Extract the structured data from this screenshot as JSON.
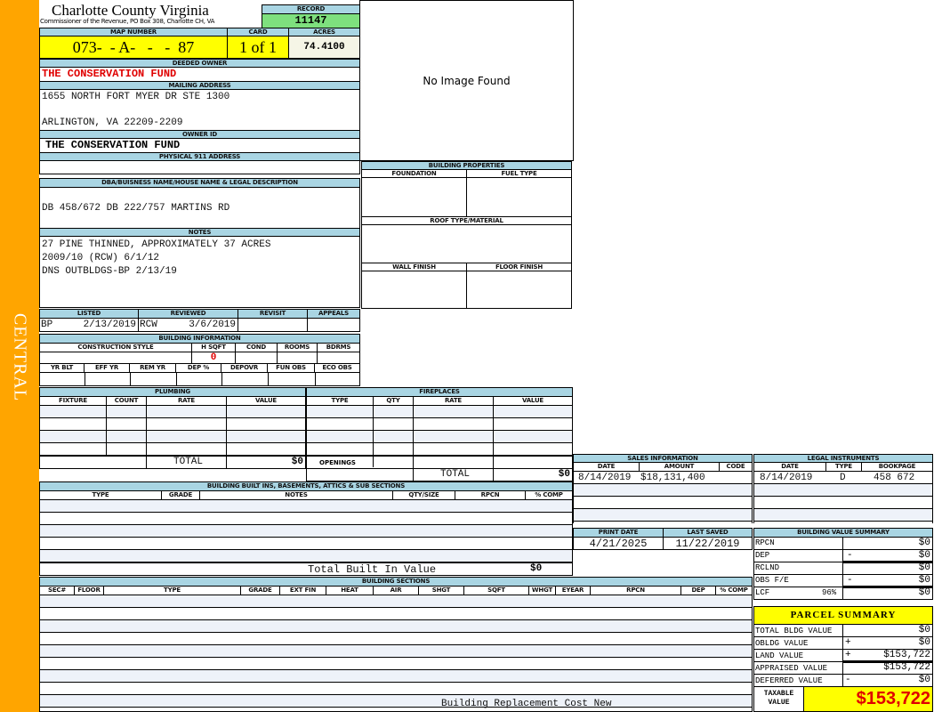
{
  "sidebar": {
    "label": "CENTRAL",
    "color": "#ffa500"
  },
  "header": {
    "title": "Charlotte County Virginia",
    "subtitle": "Commissioner of the Revenue, PO Box 308, Charlotte CH, VA"
  },
  "record": {
    "label": "RECORD",
    "value": "11147"
  },
  "map": {
    "label": "MAP NUMBER",
    "value": "073-  - A-   -   -  87",
    "card_label": "CARD",
    "card": "1 of 1",
    "acres_label": "ACRES",
    "acres": "74.4100"
  },
  "owner": {
    "deeded_label": "DEEDED OWNER",
    "deeded": "THE CONSERVATION FUND",
    "mailing_label": "MAILING ADDRESS",
    "address1": "1655 NORTH FORT MYER DR STE 1300",
    "address2": "ARLINGTON, VA 22209-2209",
    "owner_id_label": "OWNER ID",
    "owner_id": "THE CONSERVATION FUND",
    "physical_label": "PHYSICAL 911 ADDRESS",
    "physical": ""
  },
  "image": {
    "text": "No Image Found"
  },
  "legal": {
    "label": "DBA/BUISNESS NAME/HOUSE NAME & LEGAL DESCRIPTION",
    "value": "DB 458/672 DB 222/757 MARTINS RD"
  },
  "notes": {
    "label": "NOTES",
    "lines": [
      "27 PINE THINNED, APPROXIMATELY 37 ACRES",
      "2009/10 (RCW) 6/1/12",
      "DNS OUTBLDGS-BP 2/13/19"
    ]
  },
  "building_properties": {
    "label": "BUILDING PROPERTIES",
    "foundation": "FOUNDATION",
    "fuel": "FUEL TYPE",
    "roof": "ROOF TYPE/MATERIAL",
    "wall": "WALL FINISH",
    "floor": "FLOOR FINISH"
  },
  "review": {
    "listed_label": "LISTED",
    "listed_by": "BP",
    "listed_date": "2/13/2019",
    "reviewed_label": "REVIEWED",
    "reviewed_by": "RCW",
    "reviewed_date": "3/6/2019",
    "revisit_label": "REVISIT",
    "appeals_label": "APPEALS"
  },
  "building_info": {
    "label": "BUILDING INFORMATION",
    "cols1": [
      "CONSTRUCTION STYLE",
      "H SQFT",
      "COND",
      "ROOMS",
      "BDRMS"
    ],
    "hsqft": "0",
    "cols2": [
      "YR BLT",
      "EFF YR",
      "REM YR",
      "DEP %",
      "DEPOVR",
      "FUN OBS",
      "ECO OBS"
    ]
  },
  "plumbing": {
    "label": "PLUMBING",
    "cols": [
      "FIXTURE",
      "COUNT",
      "RATE",
      "VALUE"
    ],
    "total_label": "TOTAL",
    "total": "$0"
  },
  "fireplaces": {
    "label": "FIREPLACES",
    "cols": [
      "TYPE",
      "QTY",
      "RATE",
      "VALUE"
    ],
    "openings_label": "OPENINGS",
    "total_label": "TOTAL",
    "total": "$0"
  },
  "sales": {
    "label": "SALES INFORMATION",
    "cols": [
      "DATE",
      "AMOUNT",
      "CODE"
    ],
    "rows": [
      {
        "date": "8/14/2019",
        "amount": "$18,131,400",
        "code": ""
      }
    ]
  },
  "instruments": {
    "label": "LEGAL INSTRUMENTS",
    "cols": [
      "DATE",
      "TYPE",
      "BOOKPAGE"
    ],
    "rows": [
      {
        "date": "8/14/2019",
        "type": "D",
        "bookpage": "458 672"
      }
    ]
  },
  "dates": {
    "print_label": "PRINT DATE",
    "print": "4/21/2025",
    "saved_label": "LAST SAVED",
    "saved": "11/22/2019"
  },
  "bvs": {
    "label": "BUILDING VALUE SUMMARY",
    "rows": [
      {
        "label": "RPCN",
        "op": "",
        "value": "$0"
      },
      {
        "label": "DEP",
        "op": "-",
        "value": "$0"
      },
      {
        "label": "RCLND",
        "op": "",
        "value": "$0"
      },
      {
        "label": "OBS F/E",
        "op": "-",
        "value": "$0"
      },
      {
        "label": "LCF",
        "pct": "96%",
        "op": "",
        "value": "$0"
      }
    ]
  },
  "parcel": {
    "label": "PARCEL SUMMARY",
    "rows": [
      {
        "label": "TOTAL BLDG VALUE",
        "op": "",
        "value": "$0"
      },
      {
        "label": "OBLDG VALUE",
        "op": "+",
        "value": "$0"
      },
      {
        "label": "LAND VALUE",
        "op": "+",
        "value": "$153,722"
      },
      {
        "label": "APPRAISED VALUE",
        "op": "",
        "value": "$153,722"
      },
      {
        "label": "DEFERRED VALUE",
        "op": "-",
        "value": "$0"
      }
    ],
    "taxable_label1": "TAXABLE",
    "taxable_label2": "VALUE",
    "taxable": "$153,722"
  },
  "builtins": {
    "label": "BUILDING BUILT INS, BASEMENTS, ATTICS & SUB SECTIONS",
    "cols": [
      "TYPE",
      "GRADE",
      "NOTES",
      "QTY/SIZE",
      "RPCN",
      "% COMP"
    ],
    "total_label": "Total Built In Value",
    "total": "$0"
  },
  "sections": {
    "label": "BUILDING SECTIONS",
    "cols": [
      "SEC#",
      "FLOOR",
      "TYPE",
      "GRADE",
      "EXT FIN",
      "HEAT",
      "AIR",
      "SHGT",
      "SQFT",
      "WHGT",
      "EYEAR",
      "RPCN",
      "DEP",
      "% COMP"
    ],
    "footer": "Building Replacement Cost New"
  }
}
